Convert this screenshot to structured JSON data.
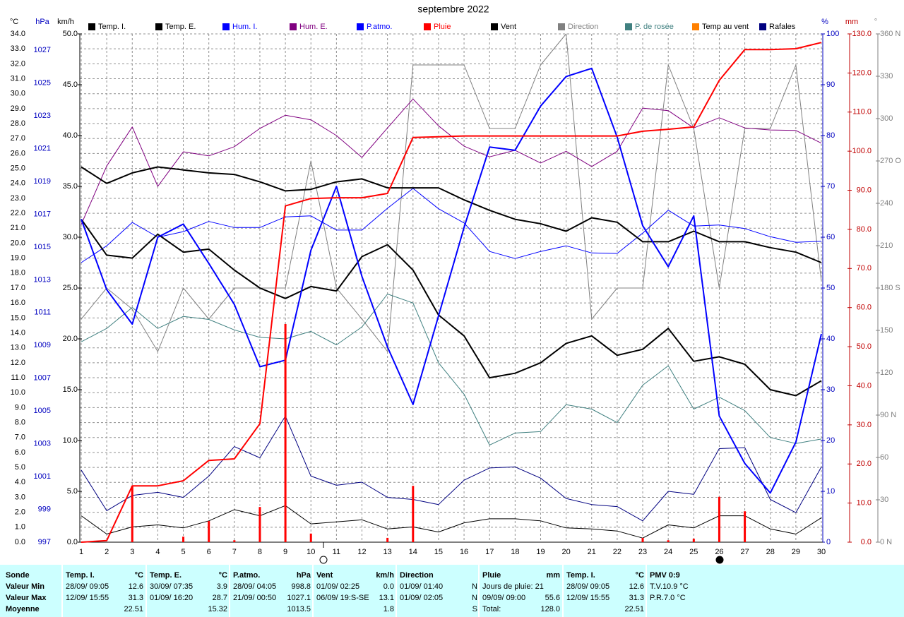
{
  "chart_data": {
    "type": "line",
    "title": "septembre 2022",
    "x": [
      1,
      2,
      3,
      4,
      5,
      6,
      7,
      8,
      9,
      10,
      11,
      12,
      13,
      14,
      15,
      16,
      17,
      18,
      19,
      20,
      21,
      22,
      23,
      24,
      25,
      26,
      27,
      28,
      29,
      30
    ],
    "xlim": [
      1,
      30
    ],
    "grid": true,
    "axes": {
      "c": {
        "label": "°C",
        "color": "#000000",
        "lim": [
          0,
          34
        ],
        "ticks": [
          {
            "value": 0,
            "label": "0.0"
          },
          {
            "value": 1,
            "label": "1.0"
          },
          {
            "value": 2,
            "label": "2.0"
          },
          {
            "value": 3,
            "label": "3.0"
          },
          {
            "value": 4,
            "label": "4.0"
          },
          {
            "value": 5,
            "label": "5.0"
          },
          {
            "value": 6,
            "label": "6.0"
          },
          {
            "value": 7,
            "label": "7.0"
          },
          {
            "value": 8,
            "label": "8.0"
          },
          {
            "value": 9,
            "label": "9.0"
          },
          {
            "value": 10,
            "label": "10.0"
          },
          {
            "value": 11,
            "label": "11.0"
          },
          {
            "value": 12,
            "label": "12.0"
          },
          {
            "value": 13,
            "label": "13.0"
          },
          {
            "value": 14,
            "label": "14.0"
          },
          {
            "value": 15,
            "label": "15.0"
          },
          {
            "value": 16,
            "label": "16.0"
          },
          {
            "value": 17,
            "label": "17.0"
          },
          {
            "value": 18,
            "label": "18.0"
          },
          {
            "value": 19,
            "label": "19.0"
          },
          {
            "value": 20,
            "label": "20.0"
          },
          {
            "value": 21,
            "label": "21.0"
          },
          {
            "value": 22,
            "label": "22.0"
          },
          {
            "value": 23,
            "label": "23.0"
          },
          {
            "value": 24,
            "label": "24.0"
          },
          {
            "value": 25,
            "label": "25.0"
          },
          {
            "value": 26,
            "label": "26.0"
          },
          {
            "value": 27,
            "label": "27.0"
          },
          {
            "value": 28,
            "label": "28.0"
          },
          {
            "value": 29,
            "label": "29.0"
          },
          {
            "value": 30,
            "label": "30.0"
          },
          {
            "value": 31,
            "label": "31.0"
          },
          {
            "value": 32,
            "label": "32.0"
          },
          {
            "value": 33,
            "label": "33.0"
          },
          {
            "value": 34,
            "label": "34.0"
          }
        ]
      },
      "h": {
        "label": "hPa",
        "color": "#0000c0",
        "lim": [
          997,
          1028
        ],
        "ticks": [
          997,
          999,
          1001,
          1003,
          1005,
          1007,
          1009,
          1011,
          1013,
          1015,
          1017,
          1019,
          1021,
          1023,
          1025,
          1027
        ]
      },
      "k": {
        "label": "km/h",
        "color": "#000000",
        "lim": [
          0,
          50
        ],
        "ticks": [
          {
            "value": 0,
            "label": "0.0"
          },
          {
            "value": 5,
            "label": "5.0"
          },
          {
            "value": 10,
            "label": "10.0"
          },
          {
            "value": 15,
            "label": "15.0"
          },
          {
            "value": 20,
            "label": "20.0"
          },
          {
            "value": 25,
            "label": "25.0"
          },
          {
            "value": 30,
            "label": "30.0"
          },
          {
            "value": 35,
            "label": "35.0"
          },
          {
            "value": 40,
            "label": "40.0"
          },
          {
            "value": 45,
            "label": "45.0"
          },
          {
            "value": 50,
            "label": "50.0"
          }
        ]
      },
      "p": {
        "label": "%",
        "color": "#0000c0",
        "lim": [
          0,
          100
        ],
        "ticks": [
          0,
          10,
          20,
          30,
          40,
          50,
          60,
          70,
          80,
          90,
          100
        ]
      },
      "m": {
        "label": "mm",
        "color": "#c00000",
        "lim": [
          0,
          130
        ],
        "ticks": [
          {
            "value": 0,
            "label": "0.0"
          },
          {
            "value": 10,
            "label": "10.0"
          },
          {
            "value": 20,
            "label": "20.0"
          },
          {
            "value": 30,
            "label": "30.0"
          },
          {
            "value": 40,
            "label": "40.0"
          },
          {
            "value": 50,
            "label": "50.0"
          },
          {
            "value": 60,
            "label": "60.0"
          },
          {
            "value": 70,
            "label": "70.0"
          },
          {
            "value": 80,
            "label": "80.0"
          },
          {
            "value": 90,
            "label": "90.0"
          },
          {
            "value": 100,
            "label": "100.0"
          },
          {
            "value": 110,
            "label": "110.0"
          },
          {
            "value": 120,
            "label": "120.0"
          },
          {
            "value": 130,
            "label": "130.0"
          }
        ]
      },
      "d": {
        "label": "°",
        "color": "#808080",
        "lim": [
          0,
          360
        ],
        "ticks": [
          {
            "value": 0,
            "label": "0   N"
          },
          30,
          60,
          {
            "value": 90,
            "label": "90 N"
          },
          120,
          150,
          {
            "value": 180,
            "label": "180 S"
          },
          210,
          240,
          {
            "value": 270,
            "label": "270 O"
          },
          300,
          330,
          {
            "value": 360,
            "label": "360 N"
          }
        ]
      }
    },
    "series": [
      {
        "name": "Temp. I.",
        "color": "#000000",
        "axis": "c",
        "width": 2,
        "values": [
          25.1,
          24.0,
          24.7,
          25.1,
          24.9,
          24.7,
          24.6,
          24.1,
          23.5,
          23.6,
          24.1,
          24.3,
          23.7,
          23.7,
          23.7,
          22.9,
          22.2,
          21.6,
          21.3,
          20.8,
          21.7,
          21.4,
          20.1,
          20.1,
          20.8,
          20.1,
          20.1,
          19.7,
          19.4,
          18.7
        ]
      },
      {
        "name": "Temp. E.",
        "color": "#000000",
        "axis": "c",
        "width": 2,
        "values": [
          21.6,
          19.2,
          19.0,
          20.6,
          19.4,
          19.6,
          18.2,
          17.0,
          16.3,
          17.1,
          16.8,
          19.1,
          19.9,
          18.2,
          15.2,
          13.8,
          11.0,
          11.3,
          12.0,
          13.3,
          13.8,
          12.5,
          12.9,
          14.3,
          12.1,
          12.4,
          11.9,
          10.2,
          9.8,
          10.8
        ]
      },
      {
        "name": "Hum. I.",
        "color": "#0000ff",
        "axis": "p",
        "width": 1,
        "values": [
          55.0,
          58.3,
          62.9,
          60.0,
          61.1,
          63.1,
          61.9,
          61.9,
          64.0,
          64.2,
          61.4,
          61.4,
          65.7,
          69.6,
          65.6,
          62.8,
          57.2,
          55.8,
          57.2,
          58.3,
          56.9,
          56.8,
          60.8,
          65.3,
          62.2,
          62.4,
          61.7,
          60.1,
          59.0,
          59.2
        ]
      },
      {
        "name": "Hum. E.",
        "color": "#800080",
        "axis": "p",
        "width": 1,
        "values": [
          62.5,
          74.0,
          81.7,
          70.0,
          76.8,
          76.0,
          77.8,
          81.4,
          84.0,
          83.1,
          80.0,
          75.7,
          81.5,
          87.2,
          81.9,
          77.9,
          75.8,
          77.1,
          74.6,
          76.9,
          73.9,
          76.9,
          85.4,
          84.9,
          81.5,
          83.5,
          81.5,
          81.1,
          81.0,
          78.5
        ]
      },
      {
        "name": "P.atmo.",
        "color": "#0000ff",
        "axis": "h",
        "width": 2,
        "values": [
          1016.7,
          1012.4,
          1010.3,
          1015.6,
          1016.4,
          1014.0,
          1011.5,
          1007.7,
          1008.1,
          1014.8,
          1018.7,
          1013.2,
          1008.9,
          1005.4,
          1010.8,
          1016.2,
          1021.1,
          1020.9,
          1023.6,
          1025.4,
          1025.9,
          1021.7,
          1016.3,
          1013.8,
          1016.9,
          1004.7,
          1001.8,
          1000.0,
          1003.1,
          1009.7
        ]
      },
      {
        "name": "Pluie",
        "color": "#ff0000",
        "axis": "m",
        "width": 2,
        "values": [
          0,
          0.4,
          14.4,
          14.4,
          15.7,
          20.9,
          21.3,
          30.3,
          86.0,
          87.9,
          88.1,
          88.1,
          89.2,
          103.5,
          103.7,
          103.9,
          103.9,
          103.9,
          103.9,
          103.9,
          103.9,
          103.9,
          105.1,
          105.6,
          106.2,
          118.1,
          126.0,
          126.0,
          126.2,
          127.8
        ],
        "bars": [
          0,
          0,
          14.4,
          0,
          1.4,
          5.4,
          0.5,
          9.0,
          55.8,
          2.2,
          0,
          0,
          1.1,
          14.4,
          0,
          0,
          0,
          0,
          0,
          0,
          0,
          0,
          1.1,
          0.5,
          0.9,
          11.6,
          7.9,
          0,
          0,
          0
        ]
      },
      {
        "name": "Vent",
        "color": "#000000",
        "axis": "k",
        "width": 1,
        "values": [
          2.6,
          0.8,
          1.5,
          1.7,
          1.4,
          2.1,
          3.2,
          2.6,
          3.6,
          1.8,
          2.0,
          2.2,
          1.3,
          1.5,
          1.0,
          1.9,
          2.3,
          2.3,
          2.1,
          1.4,
          1.3,
          1.1,
          0.4,
          1.7,
          1.4,
          2.6,
          2.6,
          1.3,
          0.8,
          2.4
        ]
      },
      {
        "name": "Direction",
        "color": "#808080",
        "axis": "d",
        "width": 1,
        "values": [
          158,
          180,
          165,
          135,
          180,
          158,
          180,
          180,
          180,
          270,
          180,
          158,
          135,
          338,
          338,
          338,
          293,
          293,
          338,
          360,
          158,
          180,
          180,
          338,
          293,
          180,
          293,
          293,
          338,
          185
        ]
      },
      {
        "name": "P. de rosée",
        "color": "#408080",
        "axis": "c",
        "width": 1,
        "values": [
          13.4,
          14.3,
          15.7,
          14.3,
          15.1,
          14.9,
          14.2,
          13.7,
          13.6,
          14.1,
          13.2,
          14.4,
          16.6,
          16.0,
          12.0,
          9.9,
          6.5,
          7.3,
          7.4,
          9.2,
          8.9,
          8.0,
          10.5,
          11.8,
          8.9,
          9.7,
          8.8,
          7.0,
          6.6,
          6.9
        ]
      },
      {
        "name": "Temp au vent",
        "color": "#ff8000",
        "axis": "c"
      },
      {
        "name": "Rafales",
        "color": "#000080",
        "axis": "k",
        "width": 1,
        "values": [
          7.1,
          3.1,
          4.6,
          4.9,
          4.4,
          6.5,
          9.4,
          8.3,
          12.4,
          6.5,
          5.6,
          5.9,
          4.4,
          4.2,
          3.7,
          6.1,
          7.3,
          7.4,
          6.3,
          4.3,
          3.7,
          3.5,
          2.1,
          5.0,
          4.7,
          9.2,
          9.3,
          4.2,
          2.9,
          7.4
        ]
      }
    ]
  },
  "table": {
    "row_labels": [
      "Sonde",
      "Valeur Min",
      "Valeur Max",
      "Moyenne"
    ],
    "columns": [
      {
        "header": "Temp. I.",
        "unit": "°C",
        "rows": [
          {
            "left": "28/09/ 09:05",
            "right": "12.6"
          },
          {
            "left": "12/09/ 15:55",
            "right": "31.3"
          },
          {
            "right": "22.51"
          }
        ]
      },
      {
        "header": "Temp. E.",
        "unit": "°C",
        "rows": [
          {
            "left": "30/09/ 07:35",
            "right": "3.9"
          },
          {
            "left": "01/09/ 16:20",
            "right": "28.7"
          },
          {
            "right": "15.32"
          }
        ]
      },
      {
        "header": "P.atmo.",
        "unit": "hPa",
        "rows": [
          {
            "left": "28/09/ 04:05",
            "right": "998.8"
          },
          {
            "left": "21/09/ 00:50",
            "right": "1027.1"
          },
          {
            "right": "1013.5"
          }
        ]
      },
      {
        "header": "Vent",
        "unit": "km/h",
        "rows": [
          {
            "left": "01/09/ 02:25",
            "right": "0.0"
          },
          {
            "left": "06/09/ 19:S-SE",
            "right": "13.1"
          },
          {
            "right": "1.8"
          }
        ]
      },
      {
        "header": "Direction",
        "rows": [
          {
            "left": "01/09/ 01:40",
            "right": "N"
          },
          {
            "left": "01/09/ 02:05",
            "right": "N"
          },
          {
            "right": "S"
          }
        ]
      },
      {
        "header": "Pluie",
        "unit": "mm",
        "rows": [
          {
            "left": "Jours de pluie: 21"
          },
          {
            "left": "09/09/ 09:00",
            "right": "55.6"
          },
          {
            "left": "Total:",
            "right": "128.0"
          }
        ]
      },
      {
        "header": "Temp. I.",
        "unit": "°C",
        "rows": [
          {
            "left": "28/09/ 09:05",
            "right": "12.6"
          },
          {
            "left": "12/09/ 15:55",
            "right": "31.3"
          },
          {
            "right": "22.51"
          }
        ]
      },
      {
        "header": "PMV 0:9",
        "rows": [
          {
            "left": "T.V.10.9 °C"
          },
          {
            "left": "P.R.7.0 °C"
          }
        ]
      }
    ]
  }
}
